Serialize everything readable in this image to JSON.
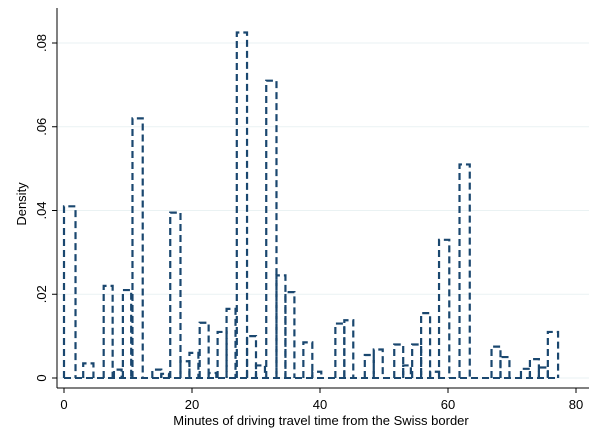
{
  "chart_data": {
    "type": "bar",
    "subtype": "histogram",
    "xlabel": "Minutes of driving travel time from the Swiss border",
    "ylabel": "Density",
    "xlim": [
      -1,
      81
    ],
    "ylim": [
      0,
      0.088
    ],
    "xticks": [
      0,
      20,
      40,
      60,
      80
    ],
    "xtick_labels": [
      "0",
      "20",
      "40",
      "60",
      "80"
    ],
    "yticks": [
      0,
      0.02,
      0.04,
      0.06,
      0.08
    ],
    "ytick_labels": [
      "0",
      ".02",
      ".04",
      ".06",
      ".08"
    ],
    "grid": "horizontal",
    "bar_style": "dashed outline",
    "bar_color": "#1a476f",
    "bins": [
      {
        "x0": 0,
        "x1": 1.8,
        "y": 0.041
      },
      {
        "x0": 3,
        "x1": 4.6,
        "y": 0.0035
      },
      {
        "x0": 6.2,
        "x1": 7.6,
        "y": 0.022
      },
      {
        "x0": 7.8,
        "x1": 9,
        "y": 0.002
      },
      {
        "x0": 9.2,
        "x1": 10.5,
        "y": 0.021
      },
      {
        "x0": 10.7,
        "x1": 12.3,
        "y": 0.062
      },
      {
        "x0": 13.8,
        "x1": 15.2,
        "y": 0.002
      },
      {
        "x0": 15.2,
        "x1": 16.4,
        "y": 0.001
      },
      {
        "x0": 16.6,
        "x1": 18.2,
        "y": 0.0395
      },
      {
        "x0": 18.2,
        "x1": 19.6,
        "y": 0.004
      },
      {
        "x0": 19.6,
        "x1": 21,
        "y": 0.006
      },
      {
        "x0": 21.2,
        "x1": 22.6,
        "y": 0.0132
      },
      {
        "x0": 22.6,
        "x1": 23.8,
        "y": 0.0012
      },
      {
        "x0": 24,
        "x1": 25.4,
        "y": 0.011
      },
      {
        "x0": 25.4,
        "x1": 26.8,
        "y": 0.0165
      },
      {
        "x0": 27,
        "x1": 28.6,
        "y": 0.0825
      },
      {
        "x0": 28.6,
        "x1": 30,
        "y": 0.01
      },
      {
        "x0": 30,
        "x1": 31.4,
        "y": 0.003
      },
      {
        "x0": 31.6,
        "x1": 33.2,
        "y": 0.071
      },
      {
        "x0": 33.2,
        "x1": 34.6,
        "y": 0.0245
      },
      {
        "x0": 34.6,
        "x1": 36,
        "y": 0.0205
      },
      {
        "x0": 37.4,
        "x1": 38.8,
        "y": 0.0085
      },
      {
        "x0": 38.8,
        "x1": 40.2,
        "y": 0.0015
      },
      {
        "x0": 42.4,
        "x1": 43.8,
        "y": 0.013
      },
      {
        "x0": 43.8,
        "x1": 45.2,
        "y": 0.0138
      },
      {
        "x0": 47,
        "x1": 48.4,
        "y": 0.0055
      },
      {
        "x0": 48.4,
        "x1": 49.8,
        "y": 0.0068
      },
      {
        "x0": 51.6,
        "x1": 53,
        "y": 0.008
      },
      {
        "x0": 53,
        "x1": 54.2,
        "y": 0.003
      },
      {
        "x0": 54.4,
        "x1": 55.8,
        "y": 0.008
      },
      {
        "x0": 55.8,
        "x1": 57.2,
        "y": 0.0155
      },
      {
        "x0": 57.2,
        "x1": 58.6,
        "y": 0.0015
      },
      {
        "x0": 58.6,
        "x1": 60.2,
        "y": 0.033
      },
      {
        "x0": 61.8,
        "x1": 63.4,
        "y": 0.051
      },
      {
        "x0": 66.8,
        "x1": 68.2,
        "y": 0.0075
      },
      {
        "x0": 68.2,
        "x1": 69.6,
        "y": 0.005
      },
      {
        "x0": 71.4,
        "x1": 72.8,
        "y": 0.0022
      },
      {
        "x0": 72.8,
        "x1": 74.2,
        "y": 0.0045
      },
      {
        "x0": 74.2,
        "x1": 75.6,
        "y": 0.0025
      },
      {
        "x0": 75.6,
        "x1": 77.2,
        "y": 0.011
      }
    ]
  }
}
